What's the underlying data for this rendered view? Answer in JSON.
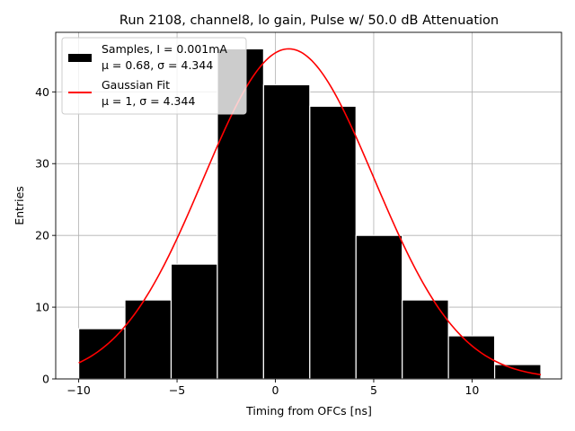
{
  "chart_data": {
    "type": "bar",
    "title": "Run 2108, channel8, lo gain, Pulse w/ 50.0 dB Attenuation",
    "xlabel": "Timing from OFCs [ns]",
    "ylabel": "Entries",
    "xlim": [
      -11.17,
      14.55
    ],
    "ylim": [
      0,
      48.3
    ],
    "grid": true,
    "xticks": [
      -10,
      -5,
      0,
      5,
      10
    ],
    "xtick_labels": [
      "−10",
      "−5",
      "0",
      "5",
      "10"
    ],
    "yticks": [
      0,
      10,
      20,
      30,
      40
    ],
    "ytick_labels": [
      "0",
      "10",
      "20",
      "30",
      "40"
    ],
    "bin_edges": [
      -10.0,
      -7.65,
      -5.3,
      -2.95,
      -0.6,
      1.75,
      4.1,
      6.45,
      8.8,
      11.15,
      13.5
    ],
    "counts": [
      7,
      11,
      16,
      46,
      41,
      38,
      20,
      11,
      6,
      2
    ],
    "bar_color": "#000000",
    "bar_edge_color": "#ffffff",
    "fit": {
      "x_start": -10.0,
      "x_end": 13.5,
      "mean": 0.68,
      "sigma": 4.344,
      "amplitude": 46.0,
      "color": "#ff0000"
    },
    "legend": {
      "placement": "upper-left",
      "entries": [
        {
          "line1": "Samples, I = 0.001mA",
          "line2": "μ = 0.68, σ = 4.344",
          "kind": "patch",
          "color": "#000000"
        },
        {
          "line1": "Gaussian Fit",
          "line2": "μ = 1, σ = 4.344",
          "kind": "line",
          "color": "#ff0000"
        }
      ]
    }
  }
}
